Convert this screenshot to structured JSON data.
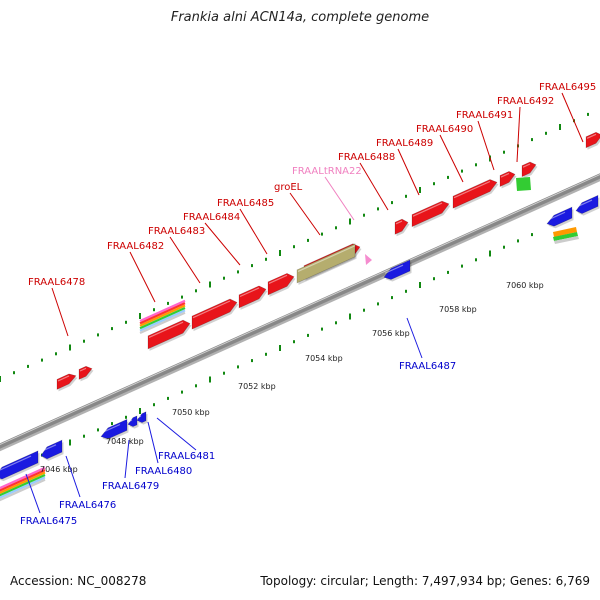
{
  "title": "Frankia alni ACN14a, complete genome",
  "footer": {
    "accession": "Accession: NC_008278",
    "summary": "Topology: circular; Length: 7,497,934 bp; Genes: 6,769"
  },
  "colors": {
    "forward_gene": "#e8141a",
    "reverse_gene": "#1a1ae0",
    "rRNA_gene": "#b5ad6e",
    "tRNA_gene": "#f58ccf",
    "green_gene": "#33cc33",
    "axis": "#888888",
    "tick": "#118811",
    "forward_label": "#cc0000",
    "reverse_label": "#0000cc",
    "tRNA_label": "#f080c0"
  },
  "scale_labels": [
    "7046 kbp",
    "7048 kbp",
    "7050 kbp",
    "7052 kbp",
    "7054 kbp",
    "7056 kbp",
    "7058 kbp",
    "7060 kbp"
  ],
  "forward_labels": [
    {
      "text": "FRAAL6478",
      "color": "forward_label"
    },
    {
      "text": "FRAAL6482",
      "color": "forward_label"
    },
    {
      "text": "FRAAL6483",
      "color": "forward_label"
    },
    {
      "text": "FRAAL6484",
      "color": "forward_label"
    },
    {
      "text": "FRAAL6485",
      "color": "forward_label"
    },
    {
      "text": "groEL",
      "color": "forward_label"
    },
    {
      "text": "FRAALtRNA22",
      "color": "tRNA_label"
    },
    {
      "text": "FRAAL6488",
      "color": "forward_label"
    },
    {
      "text": "FRAAL6489",
      "color": "forward_label"
    },
    {
      "text": "FRAAL6490",
      "color": "forward_label"
    },
    {
      "text": "FRAAL6491",
      "color": "forward_label"
    },
    {
      "text": "FRAAL6492",
      "color": "forward_label"
    },
    {
      "text": "FRAAL6495",
      "color": "forward_label"
    }
  ],
  "reverse_labels": [
    {
      "text": "FRAAL6475"
    },
    {
      "text": "FRAAL6476"
    },
    {
      "text": "FRAAL6479"
    },
    {
      "text": "FRAAL6480"
    },
    {
      "text": "FRAAL6481"
    },
    {
      "text": "FRAAL6487"
    }
  ]
}
